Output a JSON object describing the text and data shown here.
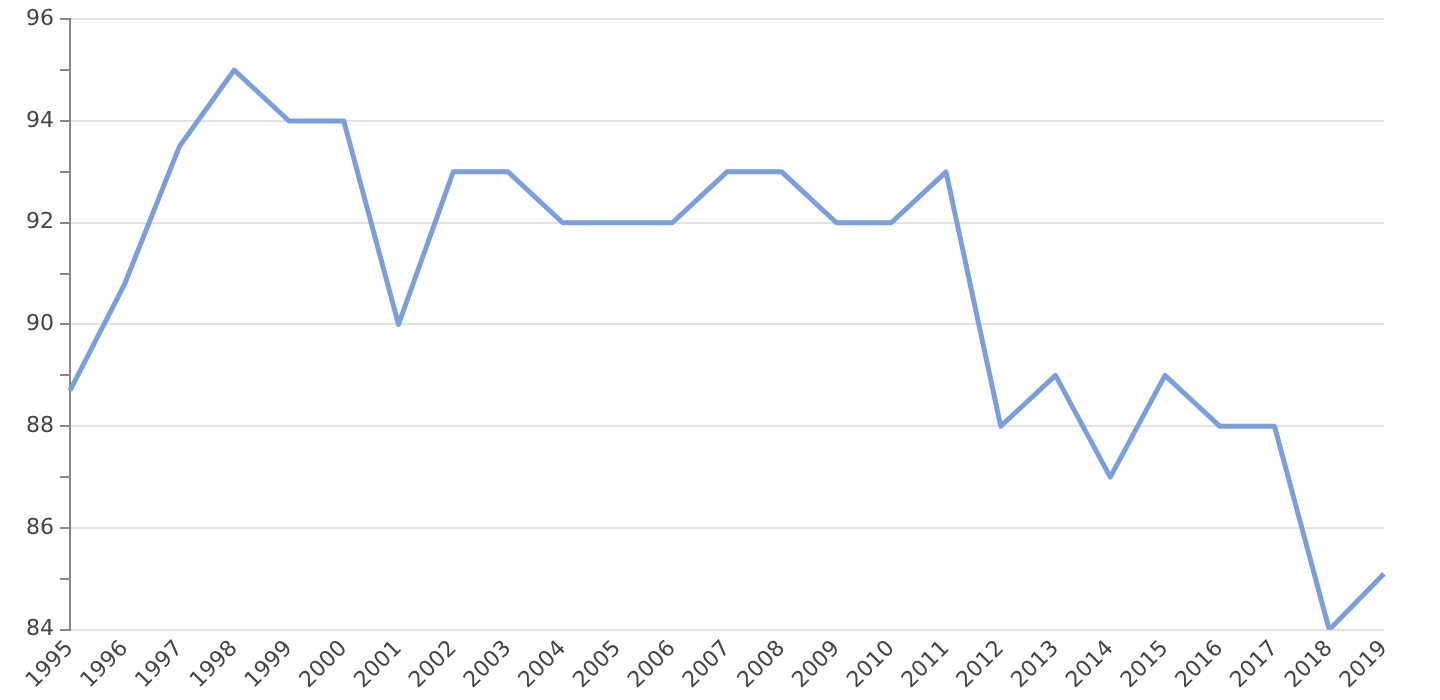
{
  "chart_data": {
    "type": "line",
    "categories": [
      "1995",
      "1996",
      "1997",
      "1998",
      "1999",
      "2000",
      "2001",
      "2002",
      "2003",
      "2004",
      "2005",
      "2006",
      "2007",
      "2008",
      "2009",
      "2010",
      "2011",
      "2012",
      "2013",
      "2014",
      "2015",
      "2016",
      "2017",
      "2018",
      "2019"
    ],
    "series": [
      {
        "color": "#7a9fdc",
        "values": [
          88.7,
          90.8,
          93.5,
          95,
          94,
          94,
          90,
          93,
          93,
          92,
          92,
          92,
          93,
          93,
          92,
          92,
          93,
          88,
          89,
          87,
          89,
          88,
          88,
          84,
          85.1
        ]
      }
    ],
    "ylim": [
      84,
      96
    ],
    "yticks": [
      84,
      {
        "value": 85,
        "label": null
      },
      86,
      {
        "value": 87,
        "label": null
      },
      88,
      {
        "value": 89,
        "label": null
      },
      90,
      {
        "value": 91,
        "label": null
      },
      92,
      {
        "value": 93,
        "label": null
      },
      94,
      {
        "value": 95,
        "label": null
      },
      96
    ],
    "grid": "y",
    "legend": false,
    "marker": "none",
    "line_style": "solid"
  }
}
